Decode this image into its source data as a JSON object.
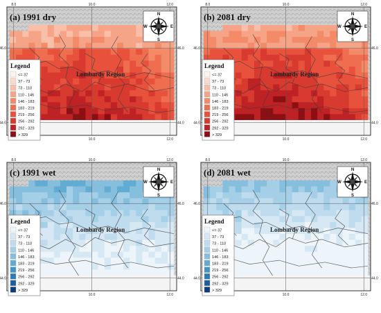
{
  "panels": [
    {
      "label": "(a) 1991 dry",
      "scheme": "red",
      "region_label": "Lombardy Region",
      "top_lon_ticks": [
        "8.0",
        "10.0",
        "12.0"
      ],
      "bottom_lon_ticks": [
        "8.0",
        "10.0",
        "12.0"
      ],
      "left_lat_ticks": [
        "46.0",
        "44.0"
      ],
      "right_lat_ticks": [
        "46.0",
        "44.0"
      ]
    },
    {
      "label": "(b) 2081 dry",
      "scheme": "red",
      "region_label": "Lombardy Region",
      "top_lon_ticks": [
        "8.0",
        "10.0",
        "12.0"
      ],
      "bottom_lon_ticks": [
        "8.0",
        "10.0",
        "12.0"
      ],
      "left_lat_ticks": [
        "46.0",
        "44.0"
      ],
      "right_lat_ticks": [
        "46.0",
        "44.0"
      ]
    },
    {
      "label": "(c) 1991 wet",
      "scheme": "blue",
      "region_label": "Lombardy Region",
      "top_lon_ticks": [
        "8.0",
        "10.0",
        "12.0"
      ],
      "bottom_lon_ticks": [
        "8.0",
        "10.0",
        "12.0"
      ],
      "left_lat_ticks": [
        "46.0",
        "44.0"
      ],
      "right_lat_ticks": [
        "46.0",
        "44.0"
      ]
    },
    {
      "label": "(d) 2081 wet",
      "scheme": "blue",
      "region_label": "Lombardy Region",
      "top_lon_ticks": [
        "8.0",
        "10.0",
        "12.0"
      ],
      "bottom_lon_ticks": [
        "8.0",
        "10.0",
        "12.0"
      ],
      "left_lat_ticks": [
        "46.0",
        "44.0"
      ],
      "right_lat_ticks": [
        "46.0",
        "44.0"
      ]
    }
  ],
  "legend": {
    "title": "Legend",
    "classes": [
      "<= 37",
      "37 - 73",
      "73 - 110",
      "110 - 146",
      "146 - 183",
      "183 - 219",
      "219 - 256",
      "256 - 292",
      "292 - 329",
      "> 329"
    ],
    "red_colors": [
      "#fdf2ee",
      "#fbd9cc",
      "#f9bfa8",
      "#f6a487",
      "#f38a68",
      "#ef6e50",
      "#e8523c",
      "#d93a2f",
      "#bf2224",
      "#8c0f14"
    ],
    "blue_colors": [
      "#edf5fb",
      "#d5e8f4",
      "#bfdcee",
      "#a5cfe7",
      "#86bfde",
      "#62abd3",
      "#4096c7",
      "#2a7bb6",
      "#1d5f9e",
      "#0f3c78"
    ]
  },
  "compass": {
    "n": "N",
    "s": "S",
    "e": "E",
    "w": "W"
  },
  "terrain_color": "#c9c9c9",
  "boundary_color": "#3c3c3c"
}
